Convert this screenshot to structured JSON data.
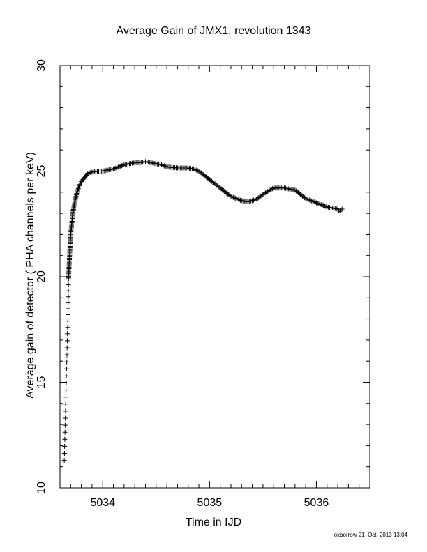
{
  "chart_data": {
    "type": "scatter",
    "title": "Average Gain of JMX1, revolution 1343",
    "xlabel": "Time in IJD",
    "ylabel": "Average gain of detector ( PHA channels per keV)",
    "xlim": [
      5033.6,
      5036.5
    ],
    "ylim": [
      10,
      30
    ],
    "xticks": [
      5034,
      5035,
      5036
    ],
    "yticks": [
      10,
      15,
      20,
      25,
      30
    ],
    "grid": false,
    "marker": "+",
    "series": [
      {
        "x": [
          5033.64,
          5033.645,
          5033.65,
          5033.655,
          5033.66,
          5033.665,
          5033.67,
          5033.675,
          5033.68,
          5033.685,
          5033.69,
          5033.695,
          5033.7,
          5033.71,
          5033.72,
          5033.73,
          5033.745,
          5033.76,
          5033.78,
          5033.8,
          5033.83,
          5033.86,
          5033.9,
          5033.95,
          5034.0,
          5034.1,
          5034.2,
          5034.3,
          5034.35,
          5034.4,
          5034.5,
          5034.55,
          5034.6,
          5034.7,
          5034.8,
          5034.85,
          5034.9,
          5035.0,
          5035.1,
          5035.2,
          5035.3,
          5035.35,
          5035.4,
          5035.45,
          5035.5,
          5035.6,
          5035.7,
          5035.8,
          5035.9,
          5036.0,
          5036.1,
          5036.15,
          5036.2,
          5036.22,
          5036.24
        ],
        "y": [
          11.3,
          12.3,
          13.3,
          14.3,
          15.3,
          16.3,
          17.3,
          18.2,
          19.9,
          20.5,
          21.0,
          21.5,
          22.0,
          22.5,
          23.0,
          23.3,
          23.7,
          24.0,
          24.3,
          24.5,
          24.7,
          24.9,
          24.95,
          25.0,
          25.0,
          25.1,
          25.3,
          25.4,
          25.4,
          25.45,
          25.35,
          25.3,
          25.2,
          25.15,
          25.15,
          25.1,
          25.0,
          24.6,
          24.2,
          23.8,
          23.6,
          23.55,
          23.6,
          23.7,
          23.9,
          24.2,
          24.2,
          24.1,
          23.7,
          23.5,
          23.3,
          23.25,
          23.2,
          23.1,
          23.2
        ]
      }
    ]
  },
  "footer": "oxborrow 21–Oct–2013 13:04",
  "colors": {
    "axis": "#000000",
    "marker": "#000000",
    "background": "#ffffff"
  }
}
